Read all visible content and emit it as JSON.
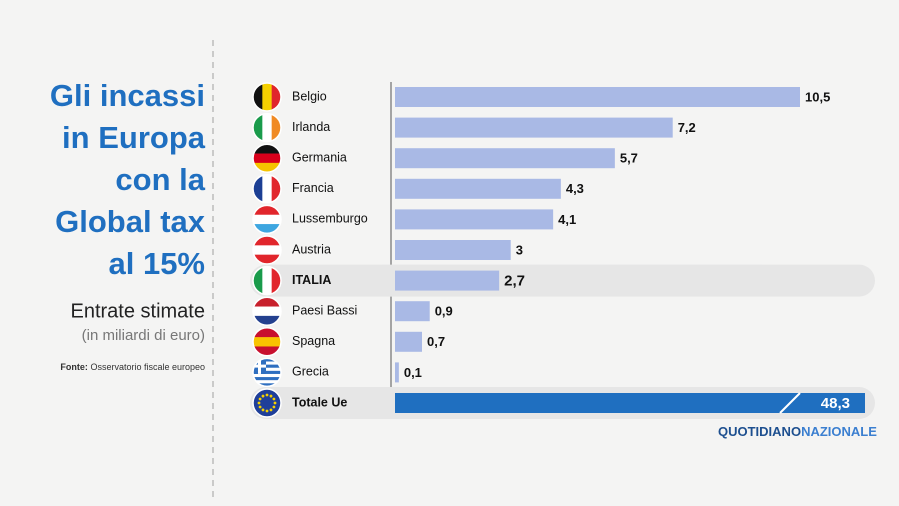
{
  "chart_data": {
    "type": "bar",
    "title_lines": [
      "Gli incassi",
      "in Europa",
      "con la",
      "Global tax",
      "al 15%"
    ],
    "subtitle": "Entrate stimate",
    "unit_note": "(in miliardi di euro)",
    "source_label": "Fonte:",
    "source": "Osservatorio fiscale europeo",
    "categories": [
      "Belgio",
      "Irlanda",
      "Germania",
      "Francia",
      "Lussemburgo",
      "Austria",
      "ITALIA",
      "Paesi Bassi",
      "Spagna",
      "Grecia"
    ],
    "values": [
      10.5,
      7.2,
      5.7,
      4.3,
      4.1,
      3,
      2.7,
      0.9,
      0.7,
      0.1
    ],
    "value_labels": [
      "10,5",
      "7,2",
      "5,7",
      "4,3",
      "4,1",
      "3",
      "2,7",
      "0,9",
      "0,7",
      "0,1"
    ],
    "color": "#a9b9e5",
    "total": {
      "name": "Totale Ue",
      "value": 48.3,
      "value_label": "48,3",
      "color": "#1f6fc0"
    },
    "logo": [
      "QUOTIDIANO",
      "NAZIONALE"
    ]
  }
}
